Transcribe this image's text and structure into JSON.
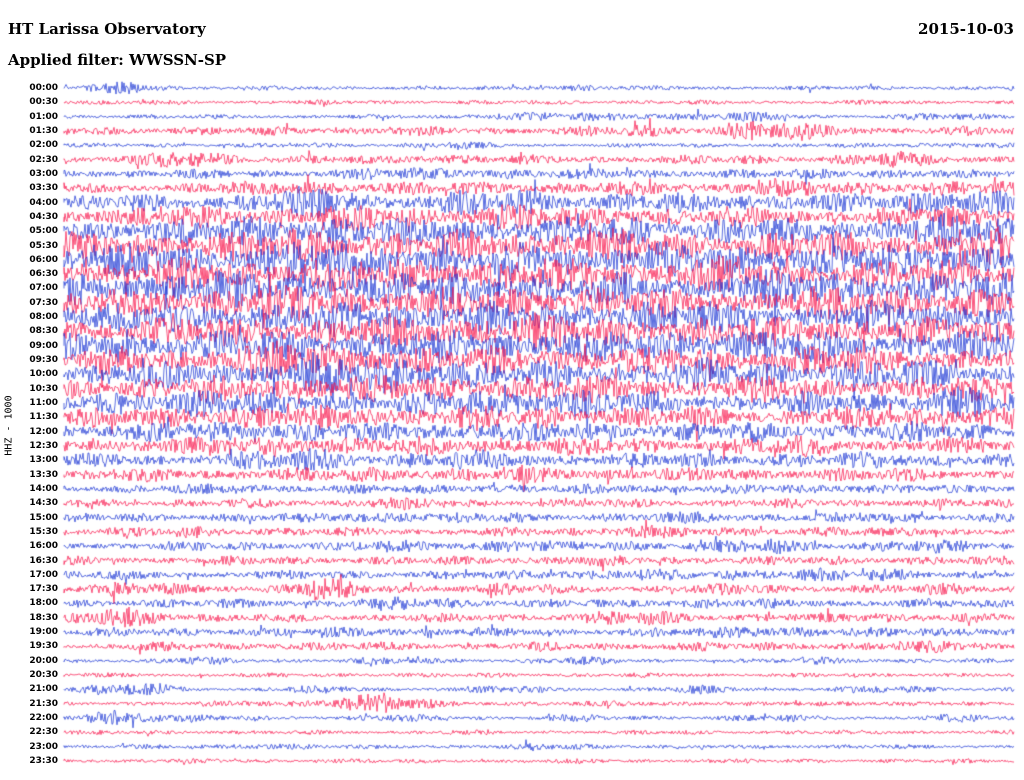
{
  "header": {
    "station": "HT Larissa Observatory",
    "date": "2015-10-03",
    "filter": "Applied filter: WWSSN-SP",
    "channel_label": "HHZ - 1000"
  },
  "chart_data": {
    "type": "line",
    "title": "HT Larissa Observatory",
    "subtitle": "Applied filter: WWSSN-SP",
    "date": "2015-10-03",
    "ylabel": "HHZ - 1000",
    "row_minutes_per_line": 30,
    "legend_position": "none",
    "grid": false,
    "colors": {
      "blue": "#1530d2",
      "red": "#f81048"
    },
    "note": "Helicorder seismogram: 48 alternating blue/red half-hour traces; envelope values are relative amplitudes 0-10 across each line",
    "rows": [
      {
        "time": "00:00",
        "color": "blue",
        "envelope": [
          1,
          3,
          1,
          1,
          1,
          1,
          1,
          1,
          2,
          1,
          1,
          1,
          1,
          1,
          1,
          1
        ]
      },
      {
        "time": "00:30",
        "color": "red",
        "envelope": [
          1,
          1,
          1,
          1,
          1,
          1,
          1,
          1,
          1,
          1,
          1,
          1,
          1,
          1,
          1,
          1
        ]
      },
      {
        "time": "01:00",
        "color": "blue",
        "envelope": [
          1,
          1,
          1,
          1,
          1,
          1,
          1,
          2,
          2,
          2,
          2,
          2,
          1,
          1,
          2,
          1
        ]
      },
      {
        "time": "01:30",
        "color": "red",
        "envelope": [
          2,
          2,
          2,
          2,
          2,
          2,
          2,
          2,
          2,
          3,
          2,
          6,
          3,
          2,
          2,
          2
        ]
      },
      {
        "time": "02:00",
        "color": "blue",
        "envelope": [
          1,
          1,
          1,
          1,
          1,
          1,
          2,
          1,
          1,
          1,
          1,
          1,
          1,
          1,
          2,
          1
        ]
      },
      {
        "time": "02:30",
        "color": "red",
        "envelope": [
          2,
          2,
          5,
          2,
          2,
          2,
          3,
          2,
          2,
          2,
          2,
          2,
          2,
          4,
          2,
          2
        ]
      },
      {
        "time": "03:00",
        "color": "blue",
        "envelope": [
          2,
          2,
          2,
          2,
          2,
          3,
          3,
          3,
          2,
          3,
          2,
          2,
          3,
          2,
          2,
          2
        ]
      },
      {
        "time": "03:30",
        "color": "red",
        "envelope": [
          2,
          2,
          3,
          3,
          4,
          3,
          3,
          3,
          3,
          3,
          3,
          4,
          4,
          3,
          4,
          3
        ]
      },
      {
        "time": "04:00",
        "color": "blue",
        "envelope": [
          3,
          4,
          4,
          5,
          7,
          4,
          5,
          6,
          4,
          5,
          4,
          5,
          4,
          4,
          8,
          5
        ]
      },
      {
        "time": "04:30",
        "color": "red",
        "envelope": [
          4,
          4,
          5,
          5,
          6,
          5,
          5,
          6,
          5,
          5,
          4,
          5,
          4,
          4,
          6,
          5
        ]
      },
      {
        "time": "05:00",
        "color": "blue",
        "envelope": [
          5,
          6,
          6,
          7,
          8,
          6,
          6,
          7,
          6,
          7,
          6,
          6,
          5,
          6,
          8,
          7
        ]
      },
      {
        "time": "05:30",
        "color": "red",
        "envelope": [
          6,
          6,
          7,
          7,
          8,
          7,
          6,
          7,
          8,
          7,
          6,
          7,
          6,
          6,
          7,
          8
        ]
      },
      {
        "time": "06:00",
        "color": "blue",
        "envelope": [
          7,
          8,
          7,
          8,
          9,
          8,
          7,
          8,
          7,
          8,
          7,
          8,
          7,
          7,
          8,
          8
        ]
      },
      {
        "time": "06:30",
        "color": "red",
        "envelope": [
          6,
          7,
          7,
          7,
          8,
          7,
          7,
          8,
          7,
          7,
          8,
          7,
          6,
          7,
          7,
          7
        ]
      },
      {
        "time": "07:00",
        "color": "blue",
        "envelope": [
          7,
          7,
          8,
          8,
          9,
          7,
          7,
          8,
          7,
          7,
          7,
          8,
          8,
          7,
          7,
          7
        ]
      },
      {
        "time": "07:30",
        "color": "red",
        "envelope": [
          6,
          7,
          7,
          8,
          8,
          7,
          7,
          7,
          8,
          7,
          6,
          7,
          7,
          8,
          7,
          6
        ]
      },
      {
        "time": "08:00",
        "color": "blue",
        "envelope": [
          6,
          7,
          7,
          7,
          8,
          8,
          7,
          7,
          7,
          8,
          7,
          7,
          6,
          7,
          7,
          7
        ]
      },
      {
        "time": "08:30",
        "color": "red",
        "envelope": [
          6,
          6,
          7,
          7,
          7,
          7,
          8,
          9,
          7,
          7,
          7,
          6,
          7,
          6,
          6,
          6
        ]
      },
      {
        "time": "09:00",
        "color": "blue",
        "envelope": [
          6,
          7,
          6,
          7,
          7,
          7,
          7,
          8,
          7,
          7,
          8,
          7,
          7,
          6,
          7,
          6
        ]
      },
      {
        "time": "09:30",
        "color": "red",
        "envelope": [
          5,
          6,
          6,
          8,
          9,
          8,
          6,
          6,
          7,
          6,
          6,
          6,
          7,
          6,
          6,
          5
        ]
      },
      {
        "time": "10:00",
        "color": "blue",
        "envelope": [
          5,
          6,
          6,
          6,
          8,
          9,
          8,
          6,
          6,
          6,
          7,
          6,
          6,
          7,
          6,
          5
        ]
      },
      {
        "time": "10:30",
        "color": "red",
        "envelope": [
          5,
          5,
          6,
          6,
          7,
          6,
          6,
          6,
          6,
          6,
          5,
          6,
          5,
          5,
          6,
          5
        ]
      },
      {
        "time": "11:00",
        "color": "blue",
        "envelope": [
          4,
          5,
          8,
          5,
          5,
          5,
          5,
          8,
          7,
          5,
          5,
          5,
          5,
          5,
          8,
          5
        ]
      },
      {
        "time": "11:30",
        "color": "red",
        "envelope": [
          4,
          5,
          5,
          6,
          5,
          6,
          5,
          6,
          6,
          5,
          5,
          4,
          5,
          5,
          6,
          5
        ]
      },
      {
        "time": "12:00",
        "color": "blue",
        "envelope": [
          4,
          4,
          5,
          5,
          5,
          4,
          5,
          5,
          5,
          4,
          4,
          5,
          4,
          4,
          5,
          4
        ]
      },
      {
        "time": "12:30",
        "color": "red",
        "envelope": [
          3,
          4,
          4,
          4,
          5,
          4,
          4,
          4,
          4,
          4,
          3,
          4,
          5,
          3,
          4,
          3
        ]
      },
      {
        "time": "13:00",
        "color": "blue",
        "envelope": [
          3,
          3,
          3,
          4,
          6,
          3,
          4,
          5,
          3,
          3,
          4,
          3,
          3,
          5,
          3,
          3
        ]
      },
      {
        "time": "13:30",
        "color": "red",
        "envelope": [
          2,
          3,
          3,
          3,
          3,
          4,
          3,
          3,
          4,
          3,
          3,
          3,
          3,
          3,
          3,
          2
        ]
      },
      {
        "time": "14:00",
        "color": "blue",
        "envelope": [
          2,
          2,
          2,
          3,
          2,
          2,
          3,
          2,
          2,
          3,
          2,
          2,
          3,
          2,
          2,
          2
        ]
      },
      {
        "time": "14:30",
        "color": "red",
        "envelope": [
          2,
          2,
          2,
          2,
          2,
          3,
          2,
          2,
          2,
          2,
          2,
          2,
          2,
          2,
          2,
          2
        ]
      },
      {
        "time": "15:00",
        "color": "blue",
        "envelope": [
          2,
          2,
          2,
          2,
          2,
          4,
          2,
          3,
          2,
          2,
          3,
          2,
          2,
          3,
          2,
          2
        ]
      },
      {
        "time": "15:30",
        "color": "red",
        "envelope": [
          2,
          2,
          3,
          2,
          2,
          2,
          2,
          2,
          2,
          4,
          2,
          2,
          3,
          2,
          2,
          2
        ]
      },
      {
        "time": "16:00",
        "color": "blue",
        "envelope": [
          2,
          2,
          2,
          2,
          2,
          3,
          2,
          4,
          2,
          3,
          2,
          4,
          2,
          3,
          3,
          2
        ]
      },
      {
        "time": "16:30",
        "color": "red",
        "envelope": [
          2,
          2,
          2,
          2,
          2,
          2,
          2,
          2,
          3,
          2,
          2,
          2,
          2,
          2,
          2,
          2
        ]
      },
      {
        "time": "17:00",
        "color": "blue",
        "envelope": [
          2,
          2,
          2,
          2,
          2,
          2,
          2,
          2,
          3,
          3,
          2,
          3,
          3,
          3,
          2,
          2
        ]
      },
      {
        "time": "17:30",
        "color": "red",
        "envelope": [
          2,
          4,
          2,
          2,
          5,
          2,
          2,
          3,
          2,
          2,
          2,
          3,
          2,
          2,
          3,
          2
        ]
      },
      {
        "time": "18:00",
        "color": "blue",
        "envelope": [
          2,
          2,
          2,
          2,
          2,
          3,
          3,
          2,
          2,
          2,
          3,
          2,
          2,
          2,
          2,
          2
        ]
      },
      {
        "time": "18:30",
        "color": "red",
        "envelope": [
          2,
          6,
          2,
          2,
          2,
          2,
          2,
          2,
          2,
          4,
          2,
          2,
          2,
          3,
          2,
          2
        ]
      },
      {
        "time": "19:00",
        "color": "blue",
        "envelope": [
          2,
          2,
          2,
          2,
          2,
          3,
          2,
          2,
          2,
          2,
          2,
          4,
          2,
          2,
          3,
          2
        ]
      },
      {
        "time": "19:30",
        "color": "red",
        "envelope": [
          1,
          2,
          2,
          2,
          2,
          2,
          2,
          2,
          2,
          2,
          2,
          2,
          2,
          2,
          3,
          2
        ]
      },
      {
        "time": "20:00",
        "color": "blue",
        "envelope": [
          1,
          1,
          2,
          1,
          1,
          2,
          1,
          1,
          2,
          1,
          1,
          1,
          2,
          1,
          1,
          1
        ]
      },
      {
        "time": "20:30",
        "color": "red",
        "envelope": [
          1,
          1,
          1,
          1,
          1,
          1,
          1,
          1,
          1,
          1,
          1,
          1,
          1,
          1,
          1,
          1
        ]
      },
      {
        "time": "21:00",
        "color": "blue",
        "envelope": [
          1,
          4,
          1,
          1,
          2,
          1,
          1,
          2,
          1,
          1,
          2,
          1,
          1,
          2,
          1,
          1
        ]
      },
      {
        "time": "21:30",
        "color": "red",
        "envelope": [
          1,
          1,
          1,
          2,
          2,
          5,
          2,
          1,
          1,
          2,
          1,
          1,
          2,
          1,
          1,
          1
        ]
      },
      {
        "time": "22:00",
        "color": "blue",
        "envelope": [
          1,
          5,
          2,
          1,
          1,
          2,
          1,
          1,
          2,
          1,
          1,
          2,
          1,
          1,
          2,
          1
        ]
      },
      {
        "time": "22:30",
        "color": "red",
        "envelope": [
          1,
          1,
          1,
          1,
          1,
          1,
          1,
          1,
          1,
          1,
          1,
          1,
          1,
          1,
          1,
          1
        ]
      },
      {
        "time": "23:00",
        "color": "blue",
        "envelope": [
          1,
          1,
          1,
          2,
          1,
          1,
          1,
          1,
          2,
          1,
          1,
          1,
          1,
          1,
          1,
          1
        ]
      },
      {
        "time": "23:30",
        "color": "red",
        "envelope": [
          1,
          1,
          1,
          1,
          1,
          1,
          1,
          1,
          1,
          1,
          1,
          1,
          1,
          1,
          1,
          1
        ]
      }
    ]
  }
}
